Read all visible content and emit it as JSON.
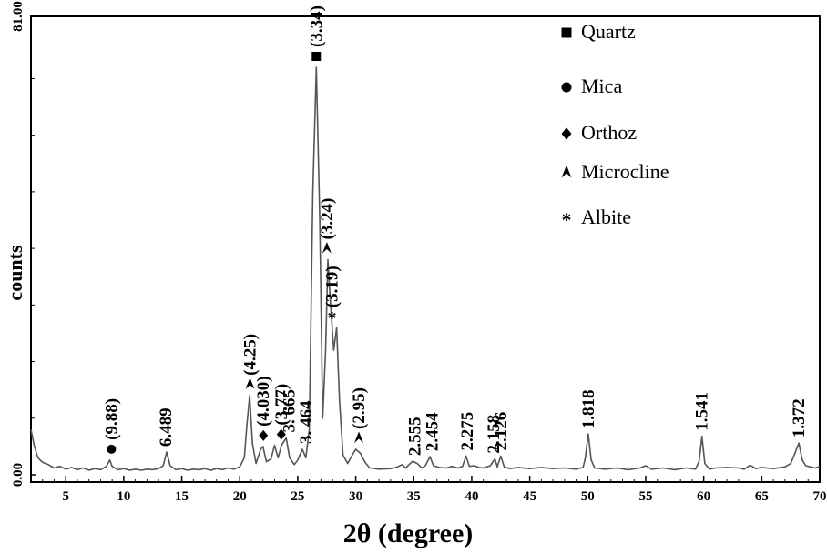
{
  "chart_data": {
    "type": "line",
    "xlabel": "2θ (degree)",
    "ylabel": "counts",
    "xlim": [
      2,
      70
    ],
    "ylim": [
      0,
      81
    ],
    "y_tick_labels": [
      "0.00",
      "81.00"
    ],
    "x_ticks": [
      5,
      10,
      15,
      20,
      25,
      30,
      35,
      40,
      45,
      50,
      55,
      60,
      65,
      70
    ],
    "series": [
      {
        "color": "#555555",
        "points": [
          [
            2.0,
            8.0
          ],
          [
            2.3,
            5.0
          ],
          [
            2.6,
            3.0
          ],
          [
            3.0,
            2.2
          ],
          [
            3.5,
            1.8
          ],
          [
            4.0,
            1.2
          ],
          [
            4.5,
            1.5
          ],
          [
            5.0,
            1.0
          ],
          [
            5.5,
            1.3
          ],
          [
            6.0,
            0.9
          ],
          [
            6.5,
            1.2
          ],
          [
            7.0,
            0.8
          ],
          [
            7.5,
            1.1
          ],
          [
            8.0,
            0.9
          ],
          [
            8.5,
            1.5
          ],
          [
            8.8,
            2.6
          ],
          [
            9.0,
            1.5
          ],
          [
            9.5,
            0.9
          ],
          [
            10.0,
            1.1
          ],
          [
            10.5,
            0.8
          ],
          [
            11.0,
            1.0
          ],
          [
            11.5,
            0.8
          ],
          [
            12.0,
            1.0
          ],
          [
            12.5,
            0.9
          ],
          [
            13.0,
            1.1
          ],
          [
            13.4,
            1.6
          ],
          [
            13.7,
            4.0
          ],
          [
            14.0,
            1.6
          ],
          [
            14.5,
            0.9
          ],
          [
            15.0,
            1.1
          ],
          [
            15.5,
            0.8
          ],
          [
            16.0,
            1.0
          ],
          [
            16.5,
            0.9
          ],
          [
            17.0,
            1.1
          ],
          [
            17.5,
            0.8
          ],
          [
            18.0,
            1.1
          ],
          [
            18.5,
            0.9
          ],
          [
            19.0,
            1.2
          ],
          [
            19.5,
            1.0
          ],
          [
            20.0,
            1.4
          ],
          [
            20.4,
            3.0
          ],
          [
            20.6,
            8.5
          ],
          [
            20.85,
            14.0
          ],
          [
            21.1,
            5.5
          ],
          [
            21.4,
            2.0
          ],
          [
            21.8,
            4.5
          ],
          [
            22.0,
            5.0
          ],
          [
            22.3,
            2.3
          ],
          [
            22.7,
            2.8
          ],
          [
            23.0,
            5.2
          ],
          [
            23.3,
            3.0
          ],
          [
            23.6,
            5.2
          ],
          [
            24.0,
            6.5
          ],
          [
            24.3,
            3.0
          ],
          [
            24.7,
            1.8
          ],
          [
            25.0,
            2.6
          ],
          [
            25.4,
            4.5
          ],
          [
            25.7,
            3.0
          ],
          [
            26.0,
            8.0
          ],
          [
            26.3,
            50.0
          ],
          [
            26.6,
            72.0
          ],
          [
            26.9,
            45.0
          ],
          [
            27.15,
            10.0
          ],
          [
            27.4,
            22.0
          ],
          [
            27.6,
            38.0
          ],
          [
            27.8,
            31.0
          ],
          [
            28.1,
            22.0
          ],
          [
            28.35,
            26.0
          ],
          [
            28.6,
            13.0
          ],
          [
            28.9,
            3.5
          ],
          [
            29.3,
            2.0
          ],
          [
            29.7,
            3.5
          ],
          [
            30.0,
            4.5
          ],
          [
            30.4,
            3.8
          ],
          [
            30.8,
            2.2
          ],
          [
            31.2,
            1.2
          ],
          [
            32.0,
            1.0
          ],
          [
            33.0,
            1.1
          ],
          [
            33.5,
            1.3
          ],
          [
            34.0,
            1.8
          ],
          [
            34.3,
            1.2
          ],
          [
            34.9,
            2.4
          ],
          [
            35.3,
            2.0
          ],
          [
            35.7,
            1.2
          ],
          [
            36.0,
            1.6
          ],
          [
            36.4,
            3.2
          ],
          [
            36.7,
            1.6
          ],
          [
            37.2,
            1.3
          ],
          [
            37.8,
            1.2
          ],
          [
            38.3,
            1.5
          ],
          [
            38.8,
            1.2
          ],
          [
            39.2,
            1.5
          ],
          [
            39.5,
            3.3
          ],
          [
            39.8,
            1.5
          ],
          [
            40.2,
            1.6
          ],
          [
            40.6,
            1.3
          ],
          [
            41.0,
            1.2
          ],
          [
            41.6,
            1.6
          ],
          [
            42.0,
            2.8
          ],
          [
            42.2,
            1.4
          ],
          [
            42.5,
            3.3
          ],
          [
            42.8,
            1.4
          ],
          [
            43.3,
            1.1
          ],
          [
            44.0,
            1.3
          ],
          [
            45.0,
            1.1
          ],
          [
            46.0,
            1.3
          ],
          [
            47.0,
            1.1
          ],
          [
            48.0,
            1.2
          ],
          [
            49.0,
            1.0
          ],
          [
            49.6,
            1.3
          ],
          [
            49.8,
            3.0
          ],
          [
            50.05,
            7.2
          ],
          [
            50.3,
            2.6
          ],
          [
            50.6,
            1.2
          ],
          [
            51.5,
            1.0
          ],
          [
            52.5,
            1.2
          ],
          [
            53.5,
            0.9
          ],
          [
            54.5,
            1.2
          ],
          [
            55.0,
            1.6
          ],
          [
            55.5,
            1.0
          ],
          [
            56.5,
            1.2
          ],
          [
            57.5,
            0.9
          ],
          [
            58.5,
            1.2
          ],
          [
            59.3,
            1.0
          ],
          [
            59.6,
            2.4
          ],
          [
            59.85,
            6.8
          ],
          [
            60.1,
            2.0
          ],
          [
            60.5,
            1.0
          ],
          [
            61.0,
            1.2
          ],
          [
            62.0,
            1.3
          ],
          [
            63.0,
            1.2
          ],
          [
            63.5,
            1.0
          ],
          [
            64.0,
            1.7
          ],
          [
            64.5,
            1.1
          ],
          [
            65.0,
            1.3
          ],
          [
            66.0,
            1.1
          ],
          [
            67.0,
            1.4
          ],
          [
            67.5,
            2.0
          ],
          [
            67.9,
            4.0
          ],
          [
            68.2,
            5.6
          ],
          [
            68.5,
            2.6
          ],
          [
            68.8,
            1.6
          ],
          [
            69.2,
            1.4
          ],
          [
            69.6,
            1.2
          ],
          [
            70.0,
            1.5
          ]
        ]
      }
    ],
    "annotations": [
      {
        "label": "(9.88)",
        "symbol": "circle",
        "x": 8.94,
        "y": 2.6
      },
      {
        "label": "6.489",
        "symbol": "",
        "x": 13.64,
        "y": 4.0
      },
      {
        "label": "(4.25)",
        "symbol": "microcline",
        "x": 20.88,
        "y": 14.0
      },
      {
        "label": "(4.030)",
        "symbol": "diamond",
        "x": 22.04,
        "y": 5.0
      },
      {
        "label": "(3.77)",
        "symbol": "diamond",
        "x": 23.58,
        "y": 5.2
      },
      {
        "label": "3. 665",
        "symbol": "",
        "x": 24.27,
        "y": 6.5
      },
      {
        "label": "3. 464",
        "symbol": "",
        "x": 25.7,
        "y": 4.5
      },
      {
        "label": "(3.34)",
        "symbol": "square",
        "x": 26.6,
        "y": 72.0
      },
      {
        "label": "(3.24)",
        "symbol": "microcline",
        "x": 27.51,
        "y": 38.0
      },
      {
        "label": "(3.19)",
        "symbol": "asterisk",
        "x": 27.95,
        "y": 26.0
      },
      {
        "label": "(2.95)",
        "symbol": "microcline",
        "x": 30.27,
        "y": 4.5
      },
      {
        "label": "2.555",
        "symbol": "",
        "x": 35.1,
        "y": 2.4
      },
      {
        "label": "2.454",
        "symbol": "",
        "x": 36.6,
        "y": 3.2
      },
      {
        "label": "2.275",
        "symbol": "",
        "x": 39.6,
        "y": 3.3
      },
      {
        "label": "2.158",
        "symbol": "",
        "x": 41.9,
        "y": 2.8
      },
      {
        "label": "2.126",
        "symbol": "",
        "x": 42.5,
        "y": 3.3
      },
      {
        "label": "1.818",
        "symbol": "",
        "x": 50.05,
        "y": 7.2
      },
      {
        "label": "1.541",
        "symbol": "",
        "x": 59.85,
        "y": 6.8
      },
      {
        "label": "1.372",
        "symbol": "",
        "x": 68.2,
        "y": 5.6
      }
    ],
    "legend": [
      {
        "symbol": "square",
        "label": "Quartz"
      },
      {
        "symbol": "circle",
        "label": "Mica"
      },
      {
        "symbol": "diamond",
        "label": "Orthoz"
      },
      {
        "symbol": "microcline",
        "label": "Microcline"
      },
      {
        "symbol": "asterisk",
        "label": "Albite"
      }
    ],
    "legend_position": "top-right",
    "grid": false
  }
}
